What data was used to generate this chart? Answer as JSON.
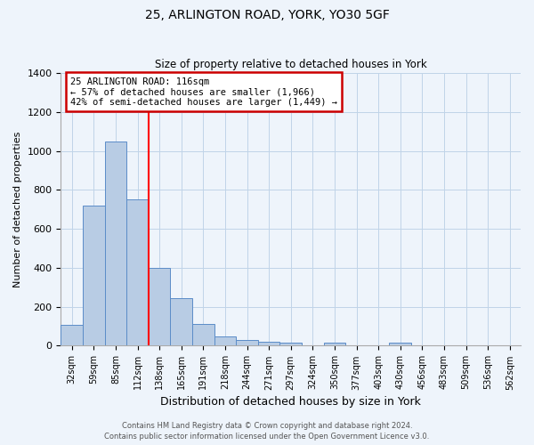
{
  "title": "25, ARLINGTON ROAD, YORK, YO30 5GF",
  "subtitle": "Size of property relative to detached houses in York",
  "xlabel": "Distribution of detached houses by size in York",
  "ylabel": "Number of detached properties",
  "bar_labels": [
    "32sqm",
    "59sqm",
    "85sqm",
    "112sqm",
    "138sqm",
    "165sqm",
    "191sqm",
    "218sqm",
    "244sqm",
    "271sqm",
    "297sqm",
    "324sqm",
    "350sqm",
    "377sqm",
    "403sqm",
    "430sqm",
    "456sqm",
    "483sqm",
    "509sqm",
    "536sqm",
    "562sqm"
  ],
  "bar_values": [
    105,
    720,
    1050,
    750,
    400,
    245,
    110,
    48,
    28,
    20,
    18,
    0,
    15,
    0,
    0,
    18,
    0,
    0,
    0,
    0,
    0
  ],
  "bar_color": "#b8cce4",
  "bar_edge_color": "#5b8cc8",
  "vline_color": "red",
  "vline_linewidth": 1.5,
  "annotation_text": "25 ARLINGTON ROAD: 116sqm\n← 57% of detached houses are smaller (1,966)\n42% of semi-detached houses are larger (1,449) →",
  "annotation_box_color": "white",
  "annotation_box_edge_color": "#cc0000",
  "ylim": [
    0,
    1400
  ],
  "yticks": [
    0,
    200,
    400,
    600,
    800,
    1000,
    1200,
    1400
  ],
  "grid_color": "#c0d4e8",
  "background_color": "#eef4fb",
  "footer_line1": "Contains HM Land Registry data © Crown copyright and database right 2024.",
  "footer_line2": "Contains public sector information licensed under the Open Government Licence v3.0."
}
